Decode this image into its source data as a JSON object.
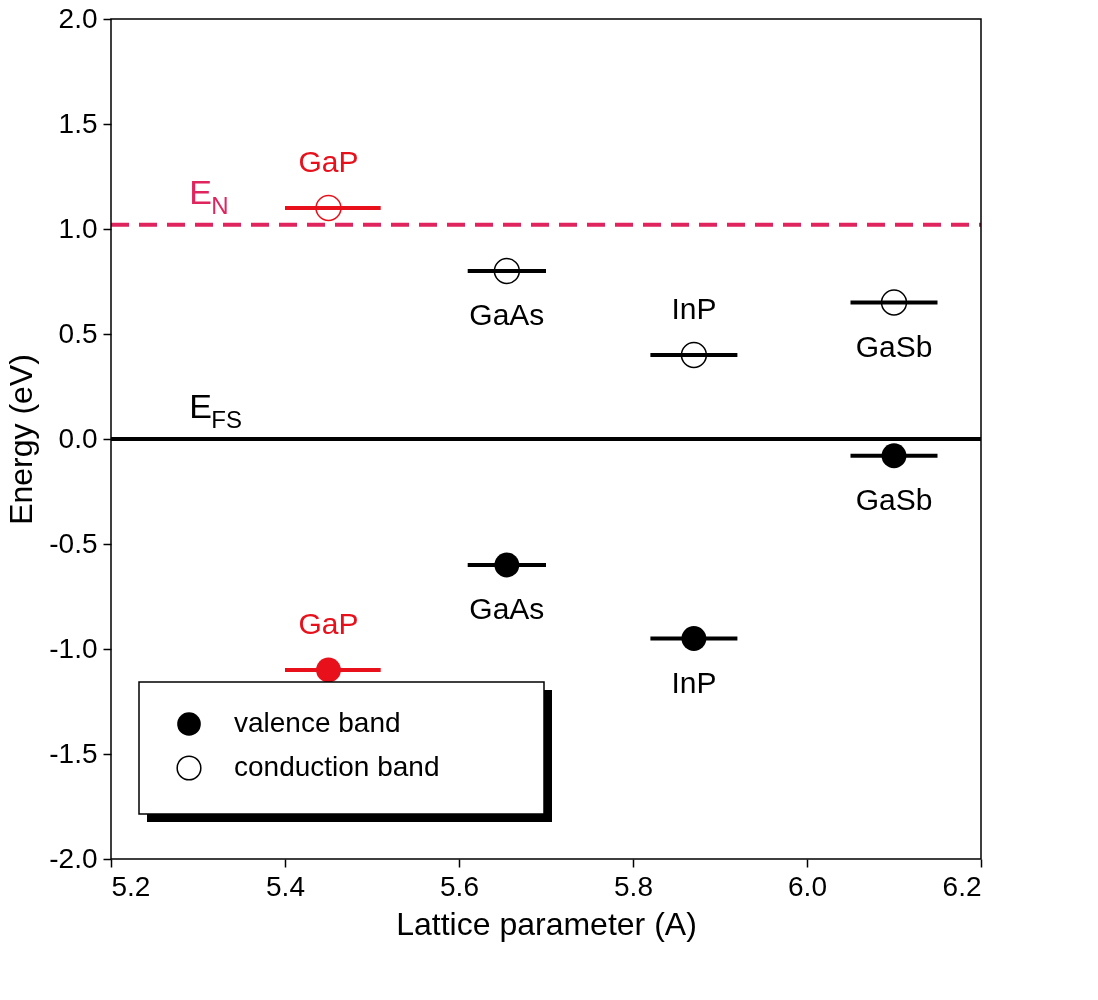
{
  "chart_data": {
    "type": "scatter",
    "xlabel": "Lattice parameter (A)",
    "ylabel": "Energy (eV)",
    "x": [
      5.45,
      5.655,
      5.87,
      6.1
    ],
    "series": [
      {
        "name": "valence band",
        "color": "#000000",
        "colors": [
          "#e8101a",
          "#000000",
          "#000000",
          "#000000"
        ],
        "values": [
          -1.1,
          -0.6,
          -0.95,
          -0.08
        ],
        "xerrors": [
          [
            5.4,
            5.51
          ],
          [
            5.61,
            5.7
          ],
          [
            5.82,
            5.92
          ],
          [
            6.05,
            6.15
          ]
        ]
      },
      {
        "name": "conduction band",
        "color": "#000000",
        "colors": [
          "#e8101a",
          "#000000",
          "#000000",
          "#000000"
        ],
        "values": [
          1.1,
          0.8,
          0.4,
          0.65
        ],
        "xerrors": [
          [
            5.4,
            5.51
          ],
          [
            5.61,
            5.7
          ],
          [
            5.82,
            5.92
          ],
          [
            6.05,
            6.15
          ]
        ]
      }
    ],
    "ref_lines": [
      {
        "axis": "y",
        "value": 1.02,
        "label": "E$_{N}$",
        "color": "#e0245e",
        "line_style": "dashed"
      },
      {
        "axis": "y",
        "value": 0,
        "label": "E$_{FS}$",
        "color": "#000000",
        "line_style": "solid"
      }
    ],
    "annotations": [
      {
        "text": "GaP",
        "x": 5.45,
        "y": 1.1
      },
      {
        "text": "GaAs",
        "x": 5.655,
        "y": 0.8
      },
      {
        "text": "InP",
        "x": 5.87,
        "y": 0.4
      },
      {
        "text": "GaSb",
        "x": 6.1,
        "y": 0.65
      },
      {
        "text": "GaSb",
        "x": 6.1,
        "y": -0.08
      },
      {
        "text": "GaAs",
        "x": 5.655,
        "y": -0.6
      },
      {
        "text": "InP",
        "x": 5.87,
        "y": -0.95
      },
      {
        "text": "GaP",
        "x": 5.45,
        "y": -1.1
      }
    ],
    "marker": "circle",
    "xlim": [
      5.2,
      6.2
    ],
    "ylim": [
      -2,
      2
    ],
    "xticks": [
      {
        "value": 5.2,
        "label": "5.2"
      },
      {
        "value": 5.4,
        "label": "5.4"
      },
      {
        "value": 5.6,
        "label": "5.6"
      },
      {
        "value": 5.8,
        "label": "5.8"
      },
      {
        "value": 6.0,
        "label": "6.0"
      },
      {
        "value": 6.2,
        "label": "6.2"
      }
    ],
    "yticks": [
      {
        "value": -2,
        "label": "-2.0"
      },
      {
        "value": -1.5,
        "label": "-1.5"
      },
      {
        "value": -1,
        "label": "-1.0"
      },
      {
        "value": -0.5,
        "label": "-0.5"
      },
      {
        "value": 0,
        "label": "0.0"
      },
      {
        "value": 0.5,
        "label": "0.5"
      },
      {
        "value": 1,
        "label": "1.0"
      },
      {
        "value": 1.5,
        "label": "1.5"
      },
      {
        "value": 2,
        "label": "2.0"
      }
    ],
    "grid": false,
    "legend": "bottom left"
  }
}
